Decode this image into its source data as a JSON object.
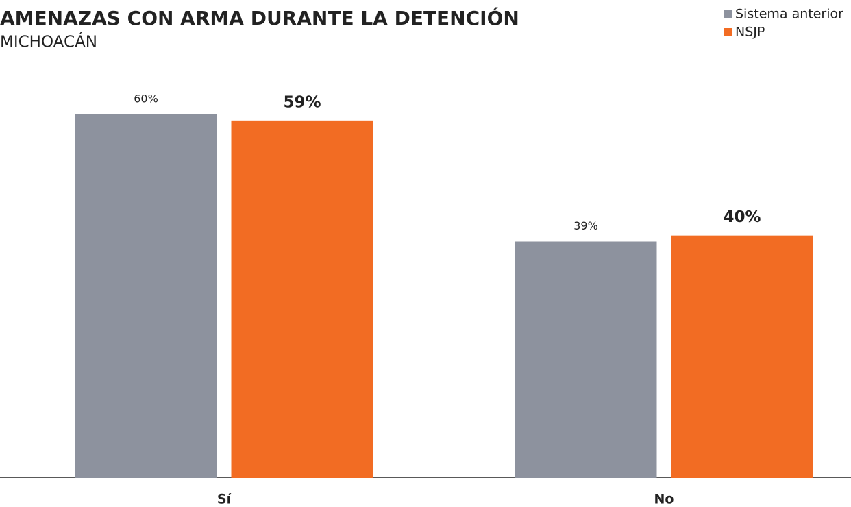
{
  "chart_data": {
    "type": "bar",
    "title": "AMENAZAS CON ARMA DURANTE LA DETENCIÓN",
    "subtitle": "MICHOACÁN",
    "categories": [
      "Sí",
      "No"
    ],
    "series": [
      {
        "name": "Sistema anterior",
        "color": "#8d929e",
        "values": [
          60,
          39
        ],
        "value_labels": [
          "60%",
          "39%"
        ]
      },
      {
        "name": "NSJP",
        "color": "#f26c23",
        "values": [
          59,
          40
        ],
        "value_labels": [
          "59%",
          "40%"
        ]
      }
    ],
    "legend": "top-right"
  }
}
